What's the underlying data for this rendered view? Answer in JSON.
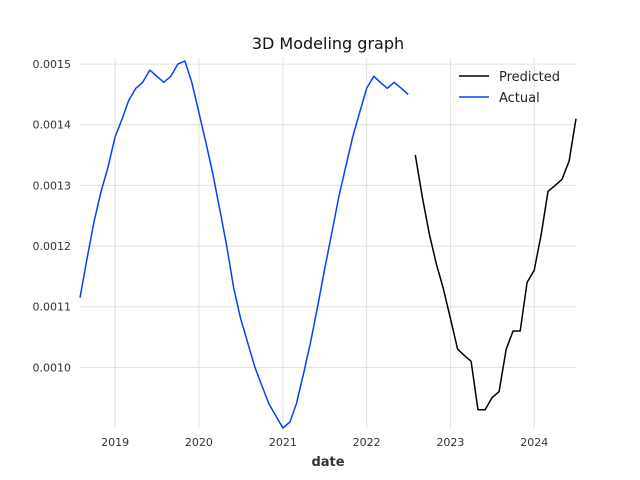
{
  "chart_data": {
    "type": "line",
    "title": "3D Modeling graph",
    "xlabel": "date",
    "ylabel": "",
    "x_ticks": [
      "2019",
      "2020",
      "2021",
      "2022",
      "2023",
      "2024"
    ],
    "y_ticks": [
      "0.0010",
      "0.0011",
      "0.0012",
      "0.0013",
      "0.0014",
      "0.0015"
    ],
    "xlim": [
      "2018-08-01",
      "2024-07-01"
    ],
    "ylim": [
      0.0009,
      0.00151
    ],
    "grid": true,
    "legend_position": "top-right",
    "series": [
      {
        "name": "Actual",
        "color": "#0b3ef5",
        "points": [
          [
            "2018-08-01",
            0.001115
          ],
          [
            "2018-09-01",
            0.00118
          ],
          [
            "2018-10-01",
            0.00124
          ],
          [
            "2018-11-01",
            0.00129
          ],
          [
            "2018-12-01",
            0.00133
          ],
          [
            "2019-01-01",
            0.00138
          ],
          [
            "2019-02-01",
            0.00141
          ],
          [
            "2019-03-01",
            0.00144
          ],
          [
            "2019-04-01",
            0.00146
          ],
          [
            "2019-05-01",
            0.00147
          ],
          [
            "2019-06-01",
            0.00149
          ],
          [
            "2019-07-01",
            0.00148
          ],
          [
            "2019-08-01",
            0.00147
          ],
          [
            "2019-09-01",
            0.00148
          ],
          [
            "2019-10-01",
            0.0015
          ],
          [
            "2019-11-01",
            0.001505
          ],
          [
            "2019-12-01",
            0.00147
          ],
          [
            "2020-01-01",
            0.00142
          ],
          [
            "2020-02-01",
            0.00137
          ],
          [
            "2020-03-01",
            0.00132
          ],
          [
            "2020-04-01",
            0.00126
          ],
          [
            "2020-05-01",
            0.0012
          ],
          [
            "2020-06-01",
            0.00113
          ],
          [
            "2020-07-01",
            0.00108
          ],
          [
            "2020-08-01",
            0.00104
          ],
          [
            "2020-09-01",
            0.001
          ],
          [
            "2020-10-01",
            0.00097
          ],
          [
            "2020-11-01",
            0.00094
          ],
          [
            "2020-12-01",
            0.00092
          ],
          [
            "2021-01-01",
            0.0009
          ],
          [
            "2021-02-01",
            0.00091
          ],
          [
            "2021-03-01",
            0.00094
          ],
          [
            "2021-04-01",
            0.00099
          ],
          [
            "2021-05-01",
            0.00104
          ],
          [
            "2021-06-01",
            0.0011
          ],
          [
            "2021-07-01",
            0.00116
          ],
          [
            "2021-08-01",
            0.00122
          ],
          [
            "2021-09-01",
            0.00128
          ],
          [
            "2021-10-01",
            0.00133
          ],
          [
            "2021-11-01",
            0.00138
          ],
          [
            "2021-12-01",
            0.00142
          ],
          [
            "2022-01-01",
            0.00146
          ],
          [
            "2022-02-01",
            0.00148
          ],
          [
            "2022-03-01",
            0.00147
          ],
          [
            "2022-04-01",
            0.00146
          ],
          [
            "2022-05-01",
            0.00147
          ],
          [
            "2022-06-01",
            0.00146
          ],
          [
            "2022-07-01",
            0.00145
          ]
        ]
      },
      {
        "name": "Predicted",
        "color": "#000000",
        "points": [
          [
            "2022-08-01",
            0.00135
          ],
          [
            "2022-09-01",
            0.00128
          ],
          [
            "2022-10-01",
            0.00122
          ],
          [
            "2022-11-01",
            0.00117
          ],
          [
            "2022-12-01",
            0.00113
          ],
          [
            "2023-01-01",
            0.00108
          ],
          [
            "2023-02-01",
            0.00103
          ],
          [
            "2023-03-01",
            0.00102
          ],
          [
            "2023-04-01",
            0.00101
          ],
          [
            "2023-05-01",
            0.00093
          ],
          [
            "2023-06-01",
            0.00093
          ],
          [
            "2023-07-01",
            0.00095
          ],
          [
            "2023-08-01",
            0.00096
          ],
          [
            "2023-09-01",
            0.00103
          ],
          [
            "2023-10-01",
            0.00106
          ],
          [
            "2023-11-01",
            0.00106
          ],
          [
            "2023-12-01",
            0.00114
          ],
          [
            "2024-01-01",
            0.00116
          ],
          [
            "2024-02-01",
            0.00122
          ],
          [
            "2024-03-01",
            0.00129
          ],
          [
            "2024-04-01",
            0.0013
          ],
          [
            "2024-05-01",
            0.00131
          ],
          [
            "2024-06-01",
            0.00134
          ],
          [
            "2024-07-01",
            0.00141
          ]
        ]
      }
    ]
  }
}
